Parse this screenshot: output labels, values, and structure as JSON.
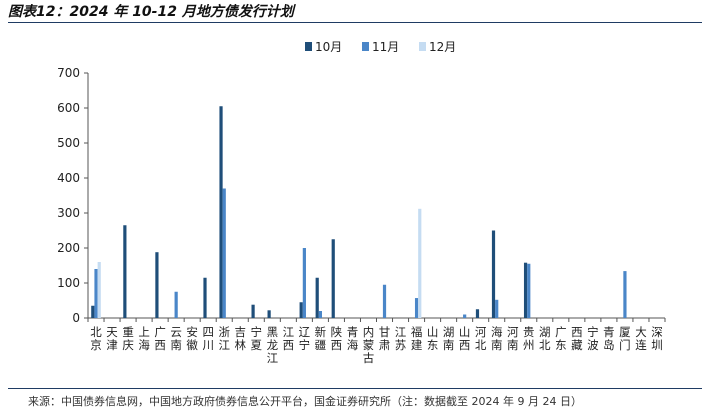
{
  "title": "图表12：2024 年 10-12 月地方债发行计划",
  "source": "来源：中国债券信息网，中国地方政府债券信息公开平台，国金证券研究所（注：数据截至 2024 年 9 月 24 日）",
  "colors": {
    "10月": "#1f4e79",
    "11月": "#4a86c8",
    "12月": "#c5dcf2"
  },
  "chart_data": {
    "type": "bar",
    "title": "",
    "xlabel": "",
    "ylabel": "",
    "ylim": [
      0,
      700
    ],
    "yticks": [
      "0",
      "100",
      "200",
      "300",
      "400",
      "500",
      "600",
      "700"
    ],
    "grid": false,
    "legend": "top-center",
    "categories": [
      "北京",
      "天津",
      "重庆",
      "上海",
      "广西",
      "云南",
      "安徽",
      "四川",
      "浙江",
      "吉林",
      "宁夏",
      "黑龙江",
      "江西",
      "辽宁",
      "新疆",
      "陕西",
      "青海",
      "内蒙古",
      "甘肃",
      "江苏",
      "福建",
      "山东",
      "湖南",
      "山西",
      "河北",
      "海南",
      "河南",
      "贵州",
      "湖北",
      "广东",
      "西藏",
      "宁波",
      "青岛",
      "厦门",
      "大连",
      "深圳"
    ],
    "series": [
      {
        "name": "10月",
        "values": [
          35,
          0,
          265,
          0,
          188,
          0,
          0,
          115,
          605,
          0,
          38,
          22,
          0,
          45,
          115,
          225,
          0,
          0,
          0,
          0,
          0,
          0,
          0,
          0,
          25,
          250,
          0,
          158,
          0,
          0,
          0,
          0,
          0,
          0,
          0,
          0
        ]
      },
      {
        "name": "11月",
        "values": [
          140,
          0,
          0,
          0,
          0,
          75,
          0,
          0,
          370,
          0,
          0,
          0,
          0,
          200,
          20,
          0,
          0,
          0,
          95,
          0,
          57,
          0,
          0,
          10,
          0,
          52,
          0,
          155,
          0,
          0,
          0,
          0,
          0,
          134,
          0,
          0
        ]
      },
      {
        "name": "12月",
        "values": [
          160,
          0,
          0,
          0,
          0,
          0,
          0,
          0,
          0,
          0,
          0,
          0,
          0,
          0,
          0,
          0,
          0,
          0,
          0,
          0,
          312,
          0,
          0,
          0,
          0,
          0,
          0,
          0,
          0,
          0,
          0,
          0,
          0,
          0,
          0,
          0
        ]
      }
    ]
  }
}
